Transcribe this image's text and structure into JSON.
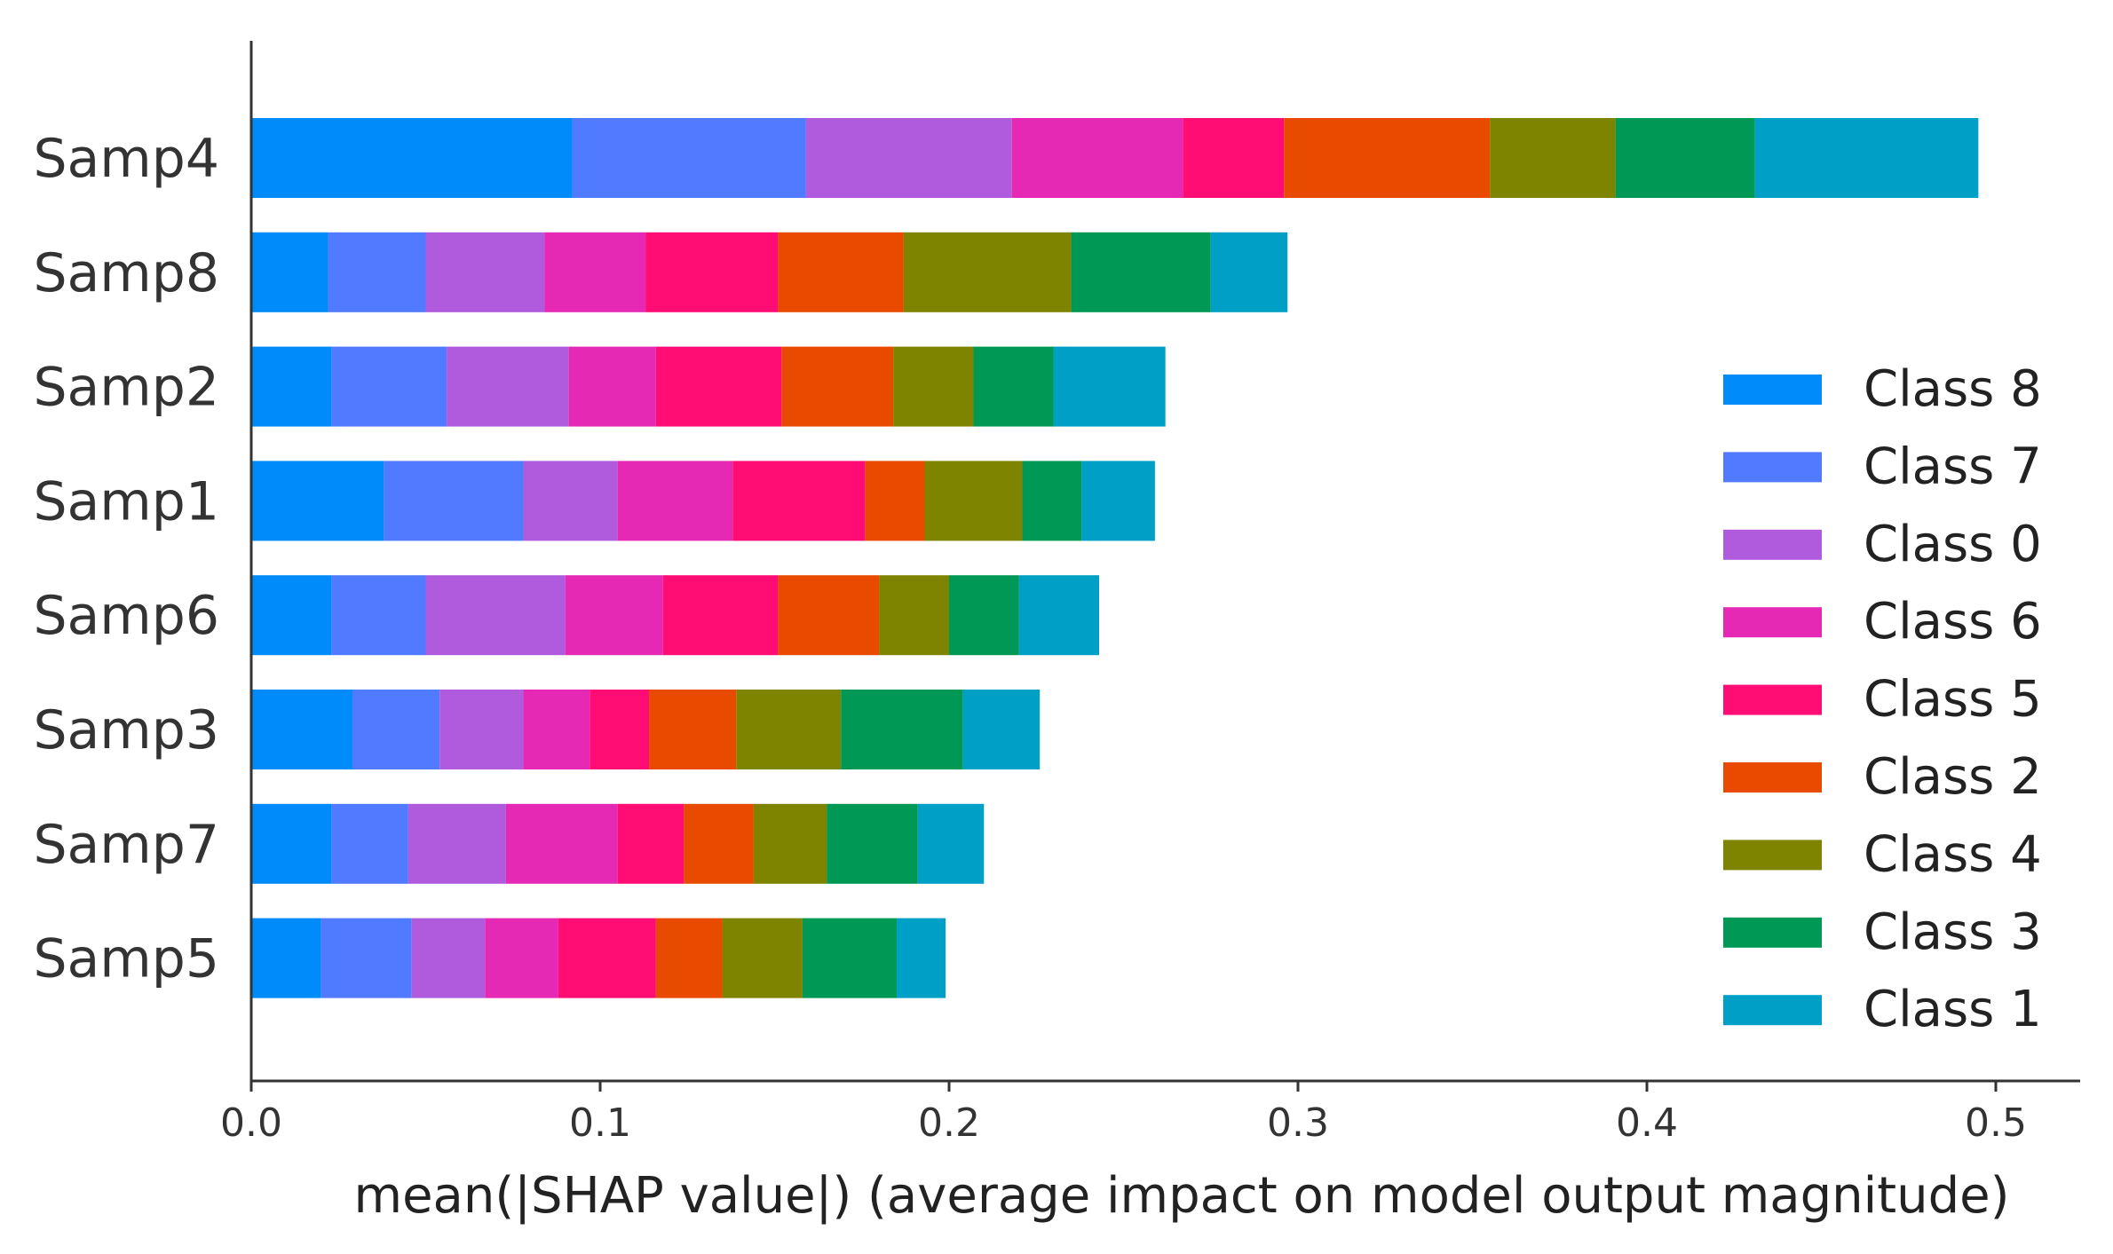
{
  "chart_data": {
    "type": "bar",
    "orientation": "horizontal",
    "stacked": true,
    "title": "",
    "xlabel": "mean(|SHAP value|) (average impact on model output magnitude)",
    "ylabel": "",
    "xlim": [
      0,
      0.52
    ],
    "x_ticks": [
      0.0,
      0.1,
      0.2,
      0.3,
      0.4,
      0.5
    ],
    "x_tick_labels": [
      "0.0",
      "0.1",
      "0.2",
      "0.3",
      "0.4",
      "0.5"
    ],
    "grid": false,
    "legend_position": "right",
    "categories": [
      "Samp4",
      "Samp8",
      "Samp2",
      "Samp1",
      "Samp6",
      "Samp3",
      "Samp7",
      "Samp5"
    ],
    "series": [
      {
        "name": "Class 8",
        "color": "#008bfb",
        "values": [
          0.092,
          0.022,
          0.023,
          0.038,
          0.023,
          0.029,
          0.023,
          0.02
        ]
      },
      {
        "name": "Class 7",
        "color": "#507aff",
        "values": [
          0.067,
          0.028,
          0.033,
          0.04,
          0.027,
          0.025,
          0.022,
          0.026
        ]
      },
      {
        "name": "Class 0",
        "color": "#b05bde",
        "values": [
          0.059,
          0.034,
          0.035,
          0.027,
          0.04,
          0.024,
          0.028,
          0.021
        ]
      },
      {
        "name": "Class 6",
        "color": "#e529b5",
        "values": [
          0.049,
          0.029,
          0.025,
          0.033,
          0.028,
          0.019,
          0.032,
          0.021
        ]
      },
      {
        "name": "Class 5",
        "color": "#ff0c75",
        "values": [
          0.029,
          0.038,
          0.036,
          0.038,
          0.033,
          0.017,
          0.019,
          0.028
        ]
      },
      {
        "name": "Class 2",
        "color": "#e84a00",
        "values": [
          0.059,
          0.036,
          0.032,
          0.017,
          0.029,
          0.025,
          0.02,
          0.019
        ]
      },
      {
        "name": "Class 4",
        "color": "#7f8400",
        "values": [
          0.036,
          0.048,
          0.023,
          0.028,
          0.02,
          0.03,
          0.021,
          0.023
        ]
      },
      {
        "name": "Class 3",
        "color": "#009855",
        "values": [
          0.04,
          0.04,
          0.023,
          0.017,
          0.02,
          0.035,
          0.026,
          0.027
        ]
      },
      {
        "name": "Class 1",
        "color": "#009fc6",
        "values": [
          0.064,
          0.022,
          0.032,
          0.021,
          0.023,
          0.022,
          0.019,
          0.014
        ]
      }
    ]
  }
}
